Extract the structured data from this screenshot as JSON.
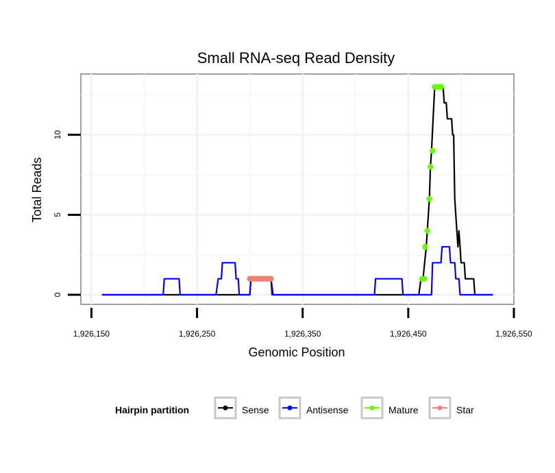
{
  "chart_data": {
    "type": "line",
    "title": "Small RNA-seq Read Density",
    "xlabel": "Genomic Position",
    "ylabel": "Total Reads",
    "xlim": [
      1926140,
      1926550
    ],
    "ylim": [
      -0.6,
      13.8
    ],
    "x_ticks": [
      {
        "value": 1926150,
        "label": "1,926,150"
      },
      {
        "value": 1926250,
        "label": "1,926,250"
      },
      {
        "value": 1926350,
        "label": "1,926,350"
      },
      {
        "value": 1926450,
        "label": "1,926,450"
      },
      {
        "value": 1926550,
        "label": "1,926,550"
      }
    ],
    "y_ticks": [
      {
        "value": 0,
        "label": "0"
      },
      {
        "value": 5,
        "label": "5"
      },
      {
        "value": 10,
        "label": "10"
      }
    ],
    "x_minor_grid": [
      1926200,
      1926300,
      1926400,
      1926500
    ],
    "y_minor_grid": [
      2.5,
      7.5,
      12.5
    ],
    "grid": true,
    "legend": {
      "title": "Hairpin partition",
      "position": "bottom",
      "entries": [
        "Sense",
        "Antisense",
        "Mature",
        "Star"
      ]
    },
    "series": [
      {
        "name": "Sense",
        "color": "#000000",
        "style": "line",
        "points": [
          [
            1926160,
            0
          ],
          [
            1926300,
            0
          ],
          [
            1926301,
            1
          ],
          [
            1926320,
            1
          ],
          [
            1926322,
            0
          ],
          [
            1926460,
            0
          ],
          [
            1926462,
            1
          ],
          [
            1926464,
            1
          ],
          [
            1926467,
            3
          ],
          [
            1926468,
            4
          ],
          [
            1926470,
            6
          ],
          [
            1926471,
            8
          ],
          [
            1926472,
            9
          ],
          [
            1926475,
            13
          ],
          [
            1926483,
            13
          ],
          [
            1926484,
            12
          ],
          [
            1926486,
            12
          ],
          [
            1926487,
            11
          ],
          [
            1926491,
            11
          ],
          [
            1926492,
            10
          ],
          [
            1926493,
            10
          ],
          [
            1926494,
            6
          ],
          [
            1926495,
            5
          ],
          [
            1926496,
            4
          ],
          [
            1926497,
            3
          ],
          [
            1926498,
            4
          ],
          [
            1926499,
            3
          ],
          [
            1926500,
            2
          ],
          [
            1926501,
            2
          ],
          [
            1926503,
            2
          ],
          [
            1926504,
            1
          ],
          [
            1926512,
            1
          ],
          [
            1926513,
            0
          ],
          [
            1926530,
            0
          ]
        ]
      },
      {
        "name": "Antisense",
        "color": "#0000ff",
        "style": "line",
        "points": [
          [
            1926160,
            0
          ],
          [
            1926218,
            0
          ],
          [
            1926219,
            1
          ],
          [
            1926233,
            1
          ],
          [
            1926234,
            0
          ],
          [
            1926268,
            0
          ],
          [
            1926270,
            1
          ],
          [
            1926273,
            1
          ],
          [
            1926274,
            2
          ],
          [
            1926286,
            2
          ],
          [
            1926287,
            1
          ],
          [
            1926289,
            1
          ],
          [
            1926290,
            0
          ],
          [
            1926300,
            0
          ],
          [
            1926301,
            1
          ],
          [
            1926320,
            1
          ],
          [
            1926321,
            0
          ],
          [
            1926418,
            0
          ],
          [
            1926419,
            1
          ],
          [
            1926444,
            1
          ],
          [
            1926445,
            0
          ],
          [
            1926472,
            0
          ],
          [
            1926473,
            2
          ],
          [
            1926481,
            2
          ],
          [
            1926482,
            3
          ],
          [
            1926489,
            3
          ],
          [
            1926490,
            2
          ],
          [
            1926494,
            2
          ],
          [
            1926495,
            1
          ],
          [
            1926498,
            1
          ],
          [
            1926499,
            0
          ],
          [
            1926530,
            0
          ]
        ]
      },
      {
        "name": "Mature",
        "color": "#66ff00",
        "style": "points",
        "points": [
          [
            1926463,
            1
          ],
          [
            1926465,
            1
          ],
          [
            1926466,
            3
          ],
          [
            1926468,
            4
          ],
          [
            1926470,
            6
          ],
          [
            1926471,
            8
          ],
          [
            1926473,
            9
          ],
          [
            1926475,
            13
          ],
          [
            1926477,
            13
          ],
          [
            1926479,
            13
          ],
          [
            1926481,
            13
          ]
        ]
      },
      {
        "name": "Star",
        "color": "#f08070",
        "style": "points",
        "points": [
          [
            1926300,
            1
          ],
          [
            1926302,
            1
          ],
          [
            1926304,
            1
          ],
          [
            1926306,
            1
          ],
          [
            1926308,
            1
          ],
          [
            1926310,
            1
          ],
          [
            1926312,
            1
          ],
          [
            1926314,
            1
          ],
          [
            1926316,
            1
          ],
          [
            1926318,
            1
          ],
          [
            1926320,
            1
          ]
        ]
      }
    ]
  }
}
